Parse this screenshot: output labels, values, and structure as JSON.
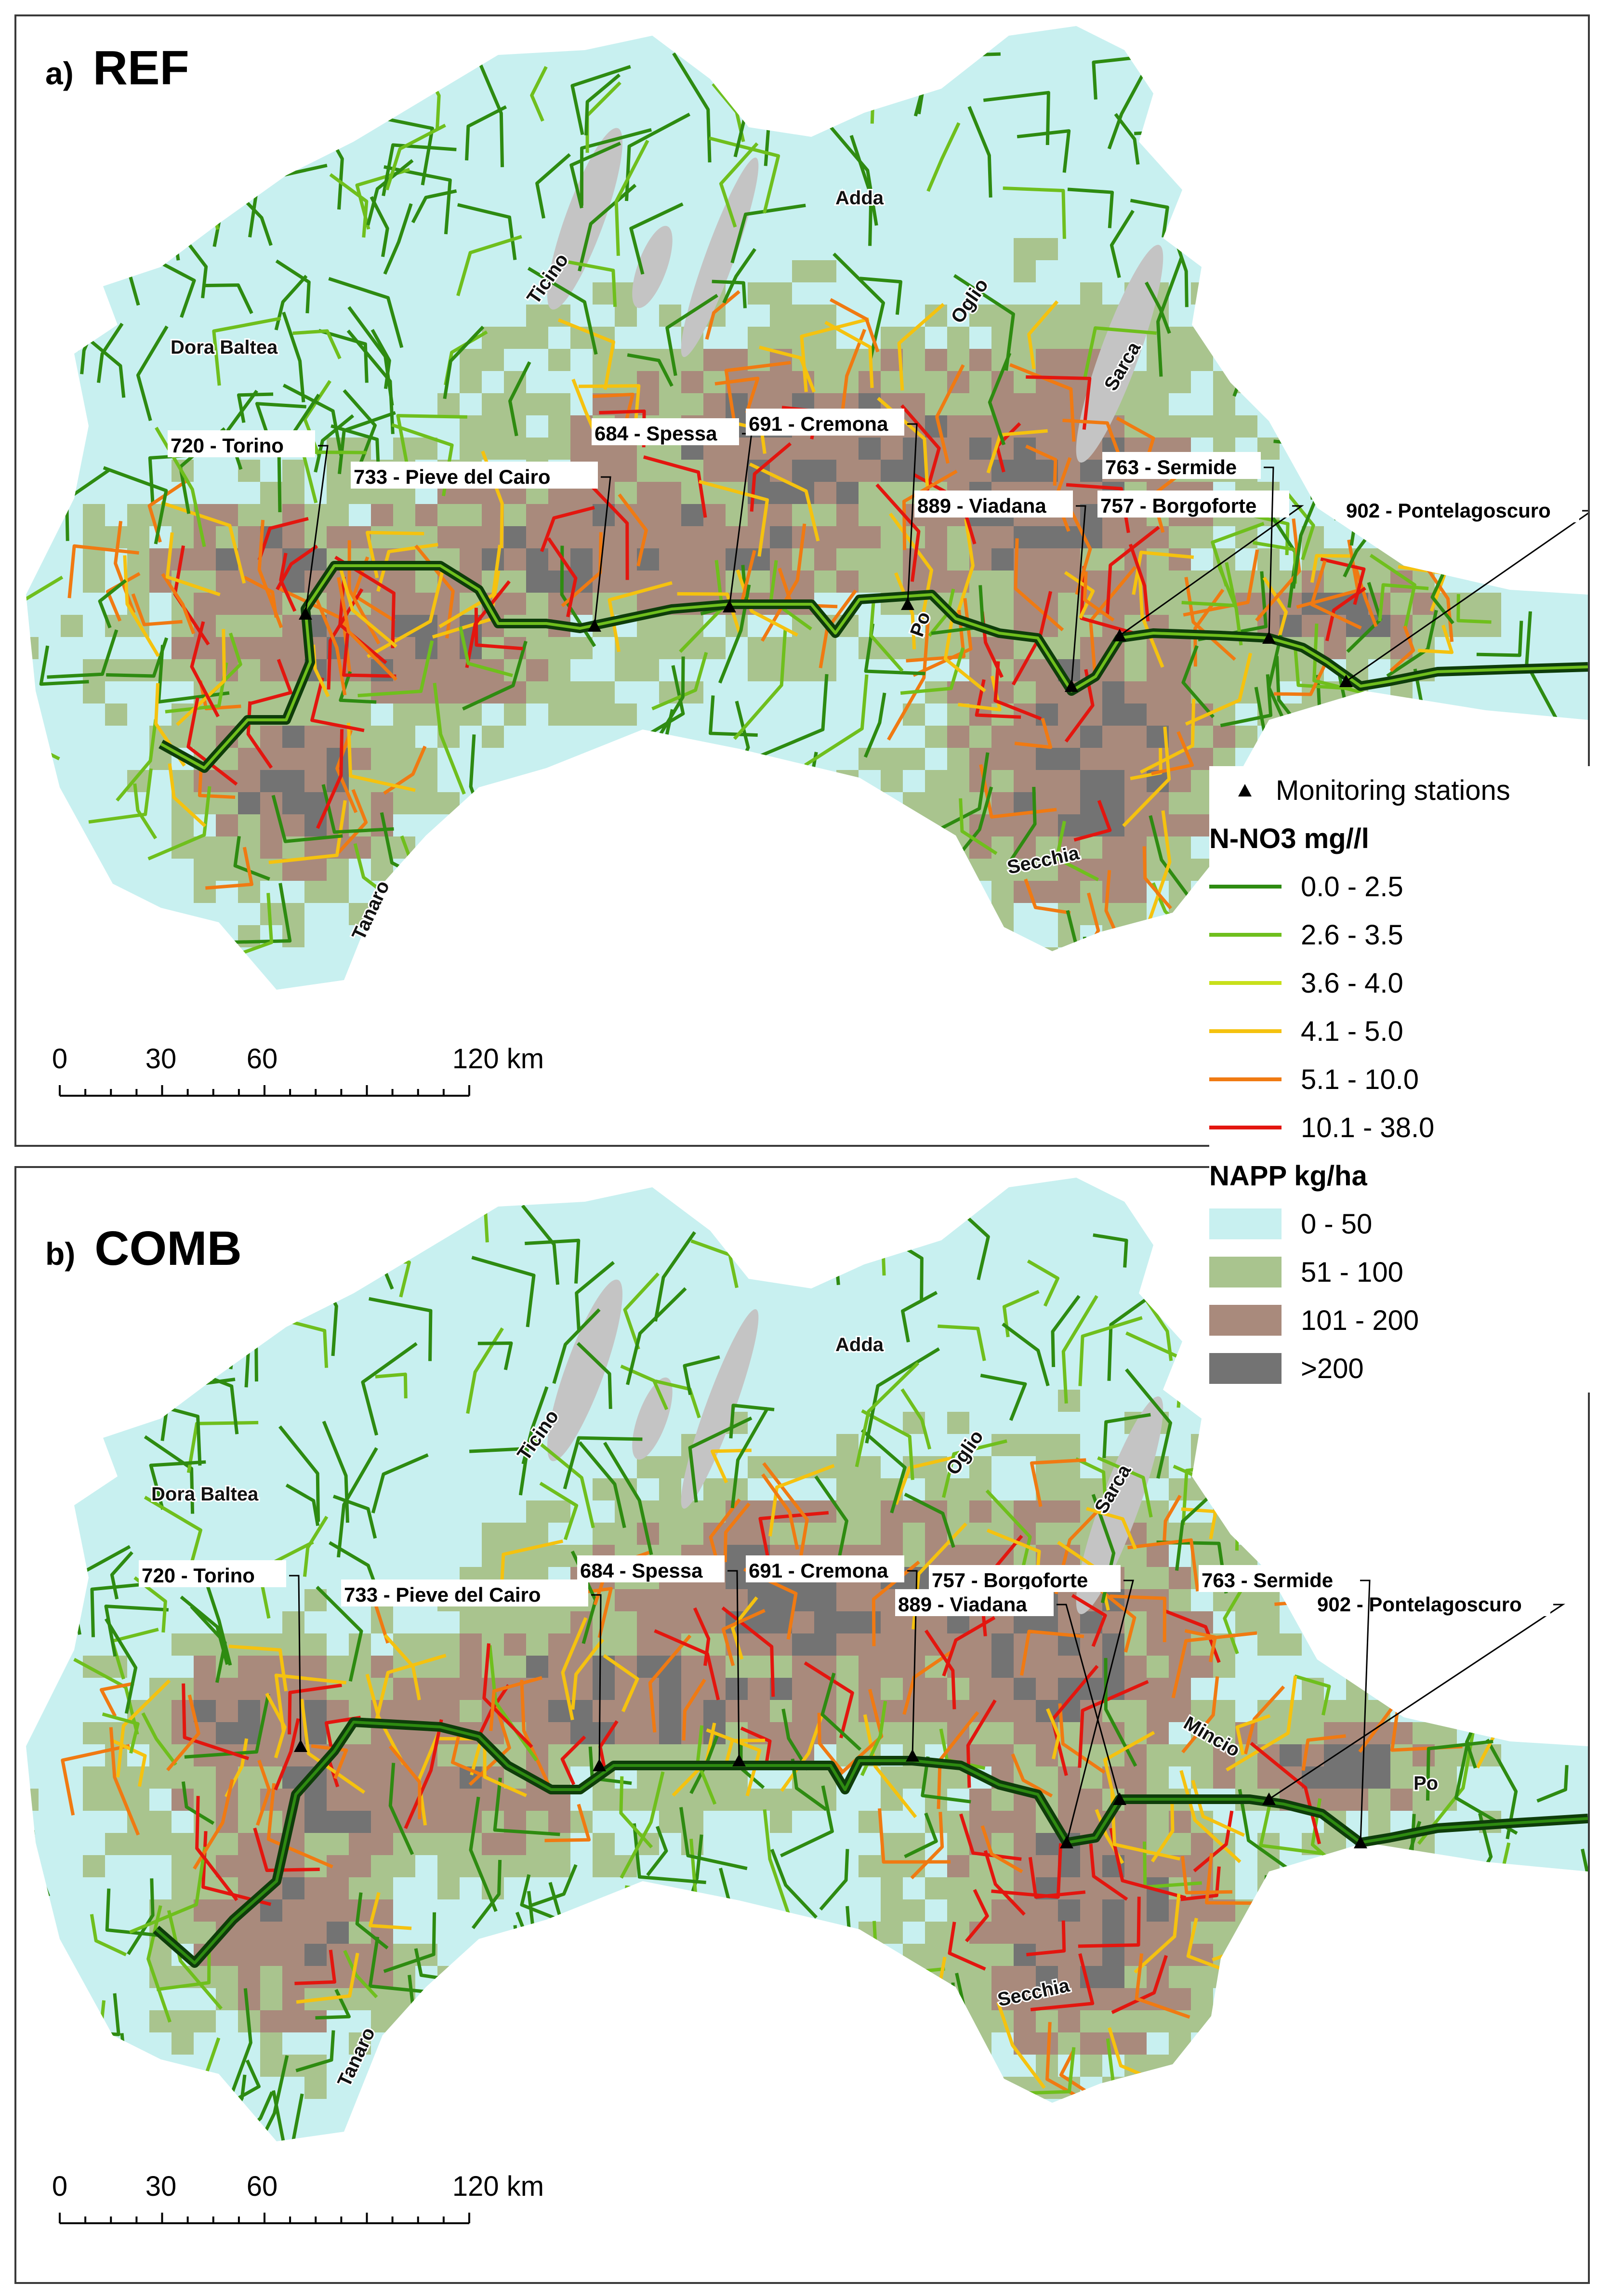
{
  "legend": {
    "stations_label": "Monitoring stations",
    "nitrate_title": "N-NO3 mg//l",
    "nitrate_classes": [
      {
        "label": "0.0 - 2.5",
        "color": "#2e8b11"
      },
      {
        "label": "2.6 - 3.5",
        "color": "#6fbf1d"
      },
      {
        "label": "3.6 - 4.0",
        "color": "#c8e01a"
      },
      {
        "label": "4.1 - 5.0",
        "color": "#f5c20f"
      },
      {
        "label": "5.1 - 10.0",
        "color": "#f07a12"
      },
      {
        "label": "10.1 - 38.0",
        "color": "#e3160f"
      }
    ],
    "napp_title": "NAPP kg/ha",
    "napp_classes": [
      {
        "label": "0 - 50",
        "color": "#c8f0f0"
      },
      {
        "label": "51 - 100",
        "color": "#a9c48e"
      },
      {
        "label": "101 - 200",
        "color": "#a98a7c"
      },
      {
        "label": ">200",
        "color": "#737373"
      }
    ]
  },
  "scale_bar": {
    "ticks": [
      "0",
      "30",
      "60",
      "120 km"
    ],
    "tick_values": [
      0,
      30,
      60,
      120
    ]
  },
  "panels": [
    {
      "letter": "a)",
      "name": "REF",
      "rivers": [
        "Dora Baltea",
        "Ticino",
        "Adda",
        "Oglio",
        "Sarca",
        "Tanaro",
        "Secchia",
        "Po"
      ],
      "stations": [
        {
          "label": "720 - Torino"
        },
        {
          "label": "733 - Pieve del Cairo"
        },
        {
          "label": "684 - Spessa"
        },
        {
          "label": "691 - Cremona"
        },
        {
          "label": "889 - Viadana"
        },
        {
          "label": "757 - Borgoforte"
        },
        {
          "label": "763 - Sermide"
        },
        {
          "label": "902 - Pontelagoscuro"
        }
      ]
    },
    {
      "letter": "b)",
      "name": "COMB",
      "rivers": [
        "Dora Baltea",
        "Ticino",
        "Adda",
        "Oglio",
        "Sarca",
        "Tanaro",
        "Secchia",
        "Mincio",
        "Po"
      ],
      "stations": [
        {
          "label": "720 - Torino"
        },
        {
          "label": "733 - Pieve del Cairo"
        },
        {
          "label": "684 - Spessa"
        },
        {
          "label": "691 - Cremona"
        },
        {
          "label": "757 - Borgoforte"
        },
        {
          "label": "889 - Viadana"
        },
        {
          "label": "902 - Pontelagoscuro"
        },
        {
          "label": "763 - Sermide"
        }
      ]
    }
  ]
}
